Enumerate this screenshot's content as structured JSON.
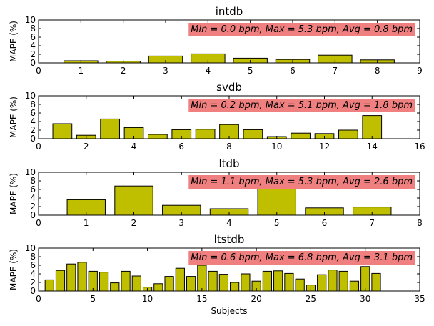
{
  "figure": {
    "xlabel": "Subjects"
  },
  "colors": {
    "bar_fill": "#bfbf00",
    "bar_edge": "#000000",
    "annotation_box": "#f08080"
  },
  "chart_data": [
    {
      "type": "bar",
      "title": "intdb",
      "ylabel": "MAPE (%)",
      "xlim": [
        0,
        9
      ],
      "ylim": [
        0,
        10
      ],
      "xticks": [
        0,
        1,
        2,
        3,
        4,
        5,
        6,
        7,
        8,
        9
      ],
      "yticks": [
        0,
        2,
        4,
        6,
        8,
        10
      ],
      "bar_width": 0.8,
      "grid": false,
      "annotation": "Min = 0.0 bpm, Max = 5.3 bpm, Avg = 0.8 bpm",
      "x": [
        1,
        2,
        3,
        4,
        5,
        6,
        7,
        8
      ],
      "values": [
        0.5,
        0.4,
        1.6,
        2.1,
        1.1,
        0.8,
        1.8,
        0.7
      ]
    },
    {
      "type": "bar",
      "title": "svdb",
      "ylabel": "MAPE (%)",
      "xlim": [
        0,
        16
      ],
      "ylim": [
        0,
        10
      ],
      "xticks": [
        0,
        2,
        4,
        6,
        8,
        10,
        12,
        14,
        16
      ],
      "yticks": [
        0,
        2,
        4,
        6,
        8,
        10
      ],
      "bar_width": 0.8,
      "grid": false,
      "annotation": "Min = 0.2 bpm, Max = 5.1 bpm, Avg = 1.8 bpm",
      "x": [
        1,
        2,
        3,
        4,
        5,
        6,
        7,
        8,
        9,
        10,
        11,
        12,
        13,
        14
      ],
      "values": [
        3.5,
        0.8,
        4.6,
        2.6,
        1.0,
        2.1,
        2.2,
        3.3,
        2.1,
        0.5,
        1.3,
        1.2,
        2.0,
        5.4
      ]
    },
    {
      "type": "bar",
      "title": "ltdb",
      "ylabel": "MAPE (%)",
      "xlim": [
        0,
        8
      ],
      "ylim": [
        0,
        10
      ],
      "xticks": [
        0,
        1,
        2,
        3,
        4,
        5,
        6,
        7,
        8
      ],
      "yticks": [
        0,
        2,
        4,
        6,
        8,
        10
      ],
      "bar_width": 0.8,
      "grid": false,
      "annotation": "Min = 1.1 bpm, Max = 5.3 bpm, Avg = 2.6 bpm",
      "x": [
        1,
        2,
        3,
        4,
        5,
        6,
        7
      ],
      "values": [
        3.6,
        6.8,
        2.3,
        1.5,
        8.0,
        1.7,
        1.9
      ]
    },
    {
      "type": "bar",
      "title": "ltstdb",
      "ylabel": "MAPE (%)",
      "xlim": [
        0,
        35
      ],
      "ylim": [
        0,
        10
      ],
      "xticks": [
        0,
        5,
        10,
        15,
        20,
        25,
        30,
        35
      ],
      "yticks": [
        0,
        2,
        4,
        6,
        8,
        10
      ],
      "bar_width": 0.8,
      "grid": false,
      "annotation": "Min = 0.6 bpm, Max = 6.8 bpm, Avg = 3.1 bpm",
      "x": [
        1,
        2,
        3,
        4,
        5,
        6,
        7,
        8,
        9,
        10,
        11,
        12,
        13,
        14,
        15,
        16,
        17,
        18,
        19,
        20,
        21,
        22,
        23,
        24,
        25,
        26,
        27,
        28,
        29,
        30,
        31
      ],
      "values": [
        2.6,
        4.8,
        6.3,
        6.7,
        4.6,
        4.4,
        1.9,
        4.6,
        3.5,
        0.9,
        1.7,
        3.4,
        5.3,
        3.4,
        6.0,
        4.6,
        3.9,
        2.0,
        4.0,
        2.3,
        4.6,
        4.7,
        4.1,
        2.8,
        1.4,
        3.8,
        4.9,
        4.6,
        2.3,
        5.7,
        4.1
      ]
    }
  ]
}
